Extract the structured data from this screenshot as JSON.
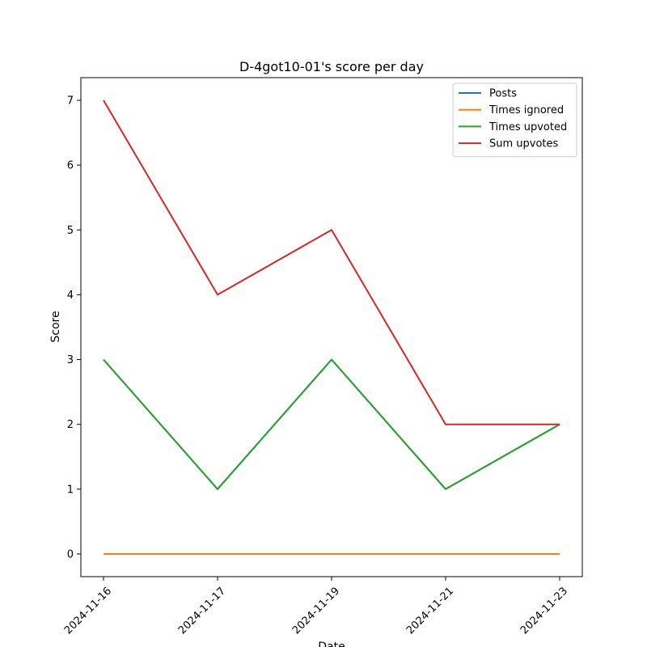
{
  "chart_data": {
    "type": "line",
    "title": "D-4got10-01's score per day",
    "xlabel": "Date",
    "ylabel": "Score",
    "categories": [
      "2024-11-16",
      "2024-11-17",
      "2024-11-19",
      "2024-11-21",
      "2024-11-23"
    ],
    "ylim": [
      -0.35,
      7.35
    ],
    "yticks": [
      0,
      1,
      2,
      3,
      4,
      5,
      6,
      7
    ],
    "grid": false,
    "legend_position": "top-right",
    "series": [
      {
        "name": "Posts",
        "color": "#1f77b4",
        "values": [
          3,
          1,
          3,
          1,
          2
        ]
      },
      {
        "name": "Times ignored",
        "color": "#ff7f0e",
        "values": [
          0,
          0,
          0,
          0,
          0
        ]
      },
      {
        "name": "Times upvoted",
        "color": "#2ca02c",
        "values": [
          3,
          1,
          3,
          1,
          2
        ]
      },
      {
        "name": "Sum upvotes",
        "color": "#d62728",
        "values": [
          7,
          4,
          5,
          2,
          2
        ]
      }
    ]
  }
}
